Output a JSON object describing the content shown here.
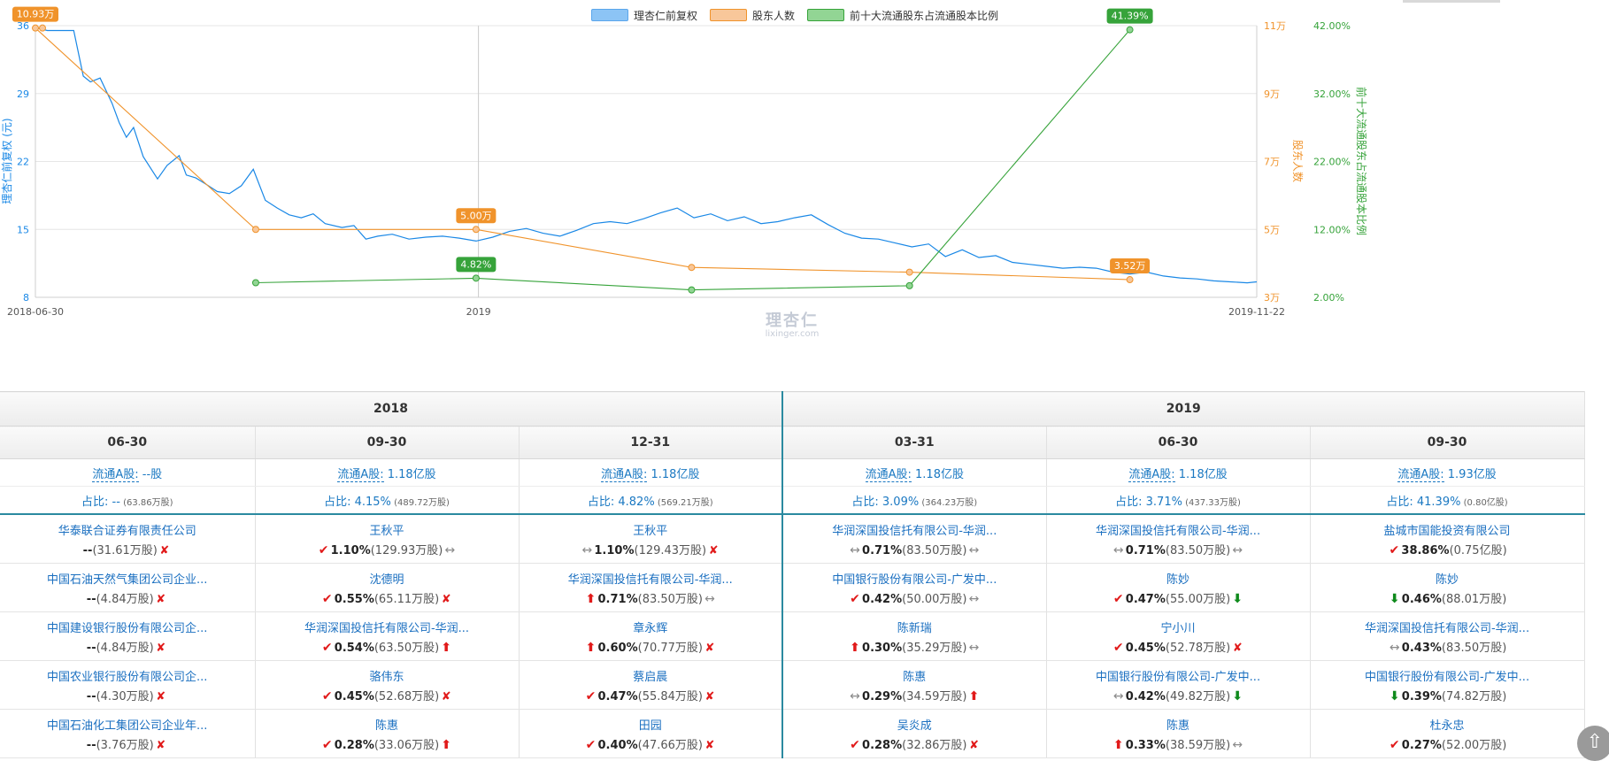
{
  "colors": {
    "price": "#1a88e6",
    "holders": "#f0932b",
    "top10": "#36a33a",
    "price_swatch": "#8cc4f5",
    "holders_swatch": "#f8c79a",
    "top10_swatch": "#92d594",
    "accent": "#2b8aa0"
  },
  "legend": [
    {
      "label": "理杏仁前复权"
    },
    {
      "label": "股东人数"
    },
    {
      "label": "前十大流通股东占流通股本比例"
    }
  ],
  "watermark": {
    "main": "理杏仁",
    "sub": "lixinger.com"
  },
  "chart_data": {
    "type": "line",
    "x_tick_labels": [
      "2018-06-30",
      "2019",
      "2019-11-22"
    ],
    "x_range": [
      "2018-06-30",
      "2019-11-22"
    ],
    "axes": {
      "left": {
        "label": "理杏仁前复权 (元)",
        "ticks": [
          "36",
          "29",
          "22",
          "15",
          "8"
        ],
        "range": [
          8,
          36
        ]
      },
      "right1": {
        "label": "股东人数",
        "ticks": [
          "11万",
          "9万",
          "7万",
          "5万",
          "3万"
        ],
        "range": [
          3,
          11
        ],
        "unit": "万"
      },
      "right2": {
        "label": "前十大流通股东占流通股本比例",
        "ticks": [
          "42.00%",
          "32.00%",
          "22.00%",
          "12.00%",
          "2.00%"
        ],
        "range": [
          2,
          42
        ],
        "unit": "%"
      }
    },
    "grid": true,
    "legend_position": "top-center",
    "series": [
      {
        "name": "理杏仁前复权",
        "axis": "left",
        "points": [
          [
            "2018-06-30",
            35.8
          ],
          [
            "2018-07-05",
            35.5
          ],
          [
            "2018-07-10",
            35.5
          ],
          [
            "2018-07-16",
            35.5
          ],
          [
            "2018-07-20",
            30.8
          ],
          [
            "2018-07-23",
            30.2
          ],
          [
            "2018-07-27",
            30.6
          ],
          [
            "2018-08-01",
            28.0
          ],
          [
            "2018-08-04",
            26.0
          ],
          [
            "2018-08-07",
            24.5
          ],
          [
            "2018-08-10",
            25.5
          ],
          [
            "2018-08-14",
            22.5
          ],
          [
            "2018-08-20",
            20.2
          ],
          [
            "2018-08-24",
            21.6
          ],
          [
            "2018-08-29",
            22.6
          ],
          [
            "2018-09-01",
            20.6
          ],
          [
            "2018-09-05",
            20.3
          ],
          [
            "2018-09-09",
            19.7
          ],
          [
            "2018-09-14",
            18.9
          ],
          [
            "2018-09-19",
            18.7
          ],
          [
            "2018-09-24",
            19.5
          ],
          [
            "2018-09-29",
            21.2
          ],
          [
            "2018-10-04",
            18.0
          ],
          [
            "2018-10-09",
            17.2
          ],
          [
            "2018-10-14",
            16.5
          ],
          [
            "2018-10-19",
            16.2
          ],
          [
            "2018-10-24",
            16.6
          ],
          [
            "2018-10-29",
            15.6
          ],
          [
            "2018-11-05",
            15.2
          ],
          [
            "2018-11-10",
            15.4
          ],
          [
            "2018-11-15",
            14.0
          ],
          [
            "2018-11-20",
            14.3
          ],
          [
            "2018-11-26",
            14.5
          ],
          [
            "2018-12-03",
            14.0
          ],
          [
            "2018-12-10",
            14.2
          ],
          [
            "2018-12-17",
            14.3
          ],
          [
            "2018-12-24",
            14.1
          ],
          [
            "2018-12-31",
            13.8
          ],
          [
            "2019-01-07",
            14.2
          ],
          [
            "2019-01-14",
            14.8
          ],
          [
            "2019-01-21",
            15.1
          ],
          [
            "2019-01-28",
            14.6
          ],
          [
            "2019-02-04",
            14.3
          ],
          [
            "2019-02-11",
            14.9
          ],
          [
            "2019-02-18",
            15.6
          ],
          [
            "2019-02-25",
            15.8
          ],
          [
            "2019-03-04",
            15.6
          ],
          [
            "2019-03-11",
            16.1
          ],
          [
            "2019-03-18",
            16.7
          ],
          [
            "2019-03-25",
            17.2
          ],
          [
            "2019-04-01",
            16.2
          ],
          [
            "2019-04-08",
            16.6
          ],
          [
            "2019-04-15",
            15.9
          ],
          [
            "2019-04-22",
            16.3
          ],
          [
            "2019-04-29",
            15.6
          ],
          [
            "2019-05-06",
            15.8
          ],
          [
            "2019-05-13",
            16.2
          ],
          [
            "2019-05-20",
            16.5
          ],
          [
            "2019-05-27",
            15.5
          ],
          [
            "2019-06-03",
            14.6
          ],
          [
            "2019-06-10",
            14.1
          ],
          [
            "2019-06-17",
            14.0
          ],
          [
            "2019-06-24",
            13.6
          ],
          [
            "2019-07-01",
            13.2
          ],
          [
            "2019-07-08",
            13.5
          ],
          [
            "2019-07-15",
            12.2
          ],
          [
            "2019-07-22",
            12.9
          ],
          [
            "2019-07-29",
            12.1
          ],
          [
            "2019-08-05",
            12.3
          ],
          [
            "2019-08-12",
            11.6
          ],
          [
            "2019-08-19",
            11.4
          ],
          [
            "2019-08-26",
            11.2
          ],
          [
            "2019-09-02",
            11.0
          ],
          [
            "2019-09-09",
            11.1
          ],
          [
            "2019-09-16",
            11.0
          ],
          [
            "2019-09-23",
            10.6
          ],
          [
            "2019-09-30",
            10.4
          ],
          [
            "2019-10-07",
            10.6
          ],
          [
            "2019-10-14",
            10.2
          ],
          [
            "2019-10-21",
            10.0
          ],
          [
            "2019-10-28",
            9.9
          ],
          [
            "2019-11-04",
            9.7
          ],
          [
            "2019-11-11",
            9.6
          ],
          [
            "2019-11-18",
            9.5
          ],
          [
            "2019-11-22",
            9.6
          ]
        ]
      },
      {
        "name": "股东人数",
        "axis": "right1",
        "unit": "万",
        "points": [
          [
            "2018-06-30",
            10.93
          ],
          [
            "2018-09-30",
            5.0
          ],
          [
            "2018-12-31",
            5.0
          ],
          [
            "2019-03-31",
            3.88
          ],
          [
            "2019-06-30",
            3.74
          ],
          [
            "2019-09-30",
            3.52
          ]
        ],
        "labels": [
          {
            "x": "2018-06-30",
            "text": "10.93万"
          },
          {
            "x": "2018-12-31",
            "text": "5.00万"
          },
          {
            "x": "2019-09-30",
            "text": "3.52万"
          }
        ]
      },
      {
        "name": "前十大流通股东占流通股本比例",
        "axis": "right2",
        "unit": "%",
        "points": [
          [
            "2018-09-30",
            4.15
          ],
          [
            "2018-12-31",
            4.82
          ],
          [
            "2019-03-31",
            3.09
          ],
          [
            "2019-06-30",
            3.71
          ],
          [
            "2019-09-30",
            41.39
          ]
        ],
        "labels": [
          {
            "x": "2018-12-31",
            "text": "4.82%"
          },
          {
            "x": "2019-09-30",
            "text": "41.39%"
          }
        ]
      }
    ]
  },
  "table": {
    "years": [
      {
        "label": "2018",
        "span": 3
      },
      {
        "label": "2019",
        "span": 3
      }
    ],
    "float_label": "流通A股:",
    "ratio_label": "占比:",
    "columns": [
      {
        "date": "06-30",
        "float": "--股",
        "ratio": "--",
        "ratio_shares": "(63.86万股)"
      },
      {
        "date": "09-30",
        "float": "1.18亿股",
        "ratio": "4.15%",
        "ratio_shares": "(489.72万股)"
      },
      {
        "date": "12-31",
        "float": "1.18亿股",
        "ratio": "4.82%",
        "ratio_shares": "(569.21万股)"
      },
      {
        "date": "03-31",
        "float": "1.18亿股",
        "ratio": "3.09%",
        "ratio_shares": "(364.23万股)"
      },
      {
        "date": "06-30",
        "float": "1.18亿股",
        "ratio": "3.71%",
        "ratio_shares": "(437.33万股)"
      },
      {
        "date": "09-30",
        "float": "1.93亿股",
        "ratio": "41.39%",
        "ratio_shares": "(0.80亿股)"
      }
    ],
    "rows": [
      [
        {
          "name": "华泰联合证券有限责任公司",
          "pre": "",
          "pct": "--",
          "shares": "(31.61万股)",
          "post": "exit"
        },
        {
          "name": "王秋平",
          "pre": "new",
          "pct": "1.10%",
          "shares": "(129.93万股)",
          "post": "same"
        },
        {
          "name": "王秋平",
          "pre": "same",
          "pct": "1.10%",
          "shares": "(129.43万股)",
          "post": "exit"
        },
        {
          "name": "华润深国投信托有限公司-华润...",
          "pre": "same",
          "pct": "0.71%",
          "shares": "(83.50万股)",
          "post": "same"
        },
        {
          "name": "华润深国投信托有限公司-华润...",
          "pre": "same",
          "pct": "0.71%",
          "shares": "(83.50万股)",
          "post": "same"
        },
        {
          "name": "盐城市国能投资有限公司",
          "pre": "new",
          "pct": "38.86%",
          "shares": "(0.75亿股)",
          "post": ""
        }
      ],
      [
        {
          "name": "中国石油天然气集团公司企业...",
          "pre": "",
          "pct": "--",
          "shares": "(4.84万股)",
          "post": "exit"
        },
        {
          "name": "沈德明",
          "pre": "new",
          "pct": "0.55%",
          "shares": "(65.11万股)",
          "post": "exit"
        },
        {
          "name": "华润深国投信托有限公司-华润...",
          "pre": "up",
          "pct": "0.71%",
          "shares": "(83.50万股)",
          "post": "same"
        },
        {
          "name": "中国银行股份有限公司-广发中...",
          "pre": "new",
          "pct": "0.42%",
          "shares": "(50.00万股)",
          "post": "same"
        },
        {
          "name": "陈妙",
          "pre": "new",
          "pct": "0.47%",
          "shares": "(55.00万股)",
          "post": "down"
        },
        {
          "name": "陈妙",
          "pre": "down",
          "pct": "0.46%",
          "shares": "(88.01万股)",
          "post": ""
        }
      ],
      [
        {
          "name": "中国建设银行股份有限公司企...",
          "pre": "",
          "pct": "--",
          "shares": "(4.84万股)",
          "post": "exit"
        },
        {
          "name": "华润深国投信托有限公司-华润...",
          "pre": "new",
          "pct": "0.54%",
          "shares": "(63.50万股)",
          "post": "up"
        },
        {
          "name": "章永辉",
          "pre": "up",
          "pct": "0.60%",
          "shares": "(70.77万股)",
          "post": "exit"
        },
        {
          "name": "陈新瑞",
          "pre": "up",
          "pct": "0.30%",
          "shares": "(35.29万股)",
          "post": "same"
        },
        {
          "name": "宁小川",
          "pre": "new",
          "pct": "0.45%",
          "shares": "(52.78万股)",
          "post": "exit"
        },
        {
          "name": "华润深国投信托有限公司-华润...",
          "pre": "same",
          "pct": "0.43%",
          "shares": "(83.50万股)",
          "post": ""
        }
      ],
      [
        {
          "name": "中国农业银行股份有限公司企...",
          "pre": "",
          "pct": "--",
          "shares": "(4.30万股)",
          "post": "exit"
        },
        {
          "name": "骆伟东",
          "pre": "new",
          "pct": "0.45%",
          "shares": "(52.68万股)",
          "post": "exit"
        },
        {
          "name": "蔡启晨",
          "pre": "new",
          "pct": "0.47%",
          "shares": "(55.84万股)",
          "post": "exit"
        },
        {
          "name": "陈惠",
          "pre": "same",
          "pct": "0.29%",
          "shares": "(34.59万股)",
          "post": "up"
        },
        {
          "name": "中国银行股份有限公司-广发中...",
          "pre": "same",
          "pct": "0.42%",
          "shares": "(49.82万股)",
          "post": "down"
        },
        {
          "name": "中国银行股份有限公司-广发中...",
          "pre": "down",
          "pct": "0.39%",
          "shares": "(74.82万股)",
          "post": ""
        }
      ],
      [
        {
          "name": "中国石油化工集团公司企业年...",
          "pre": "",
          "pct": "--",
          "shares": "(3.76万股)",
          "post": "exit"
        },
        {
          "name": "陈惠",
          "pre": "new",
          "pct": "0.28%",
          "shares": "(33.06万股)",
          "post": "up"
        },
        {
          "name": "田园",
          "pre": "new",
          "pct": "0.40%",
          "shares": "(47.66万股)",
          "post": "exit"
        },
        {
          "name": "吴炎成",
          "pre": "new",
          "pct": "0.28%",
          "shares": "(32.86万股)",
          "post": "exit"
        },
        {
          "name": "陈惠",
          "pre": "up",
          "pct": "0.33%",
          "shares": "(38.59万股)",
          "post": "same"
        },
        {
          "name": "杜永忠",
          "pre": "new",
          "pct": "0.27%",
          "shares": "(52.00万股)",
          "post": ""
        }
      ]
    ]
  },
  "icons": {
    "new": "check-icon",
    "exit": "cross-icon",
    "up": "arrow-up-icon",
    "down": "arrow-down-icon",
    "same": "arrow-both-icon"
  }
}
